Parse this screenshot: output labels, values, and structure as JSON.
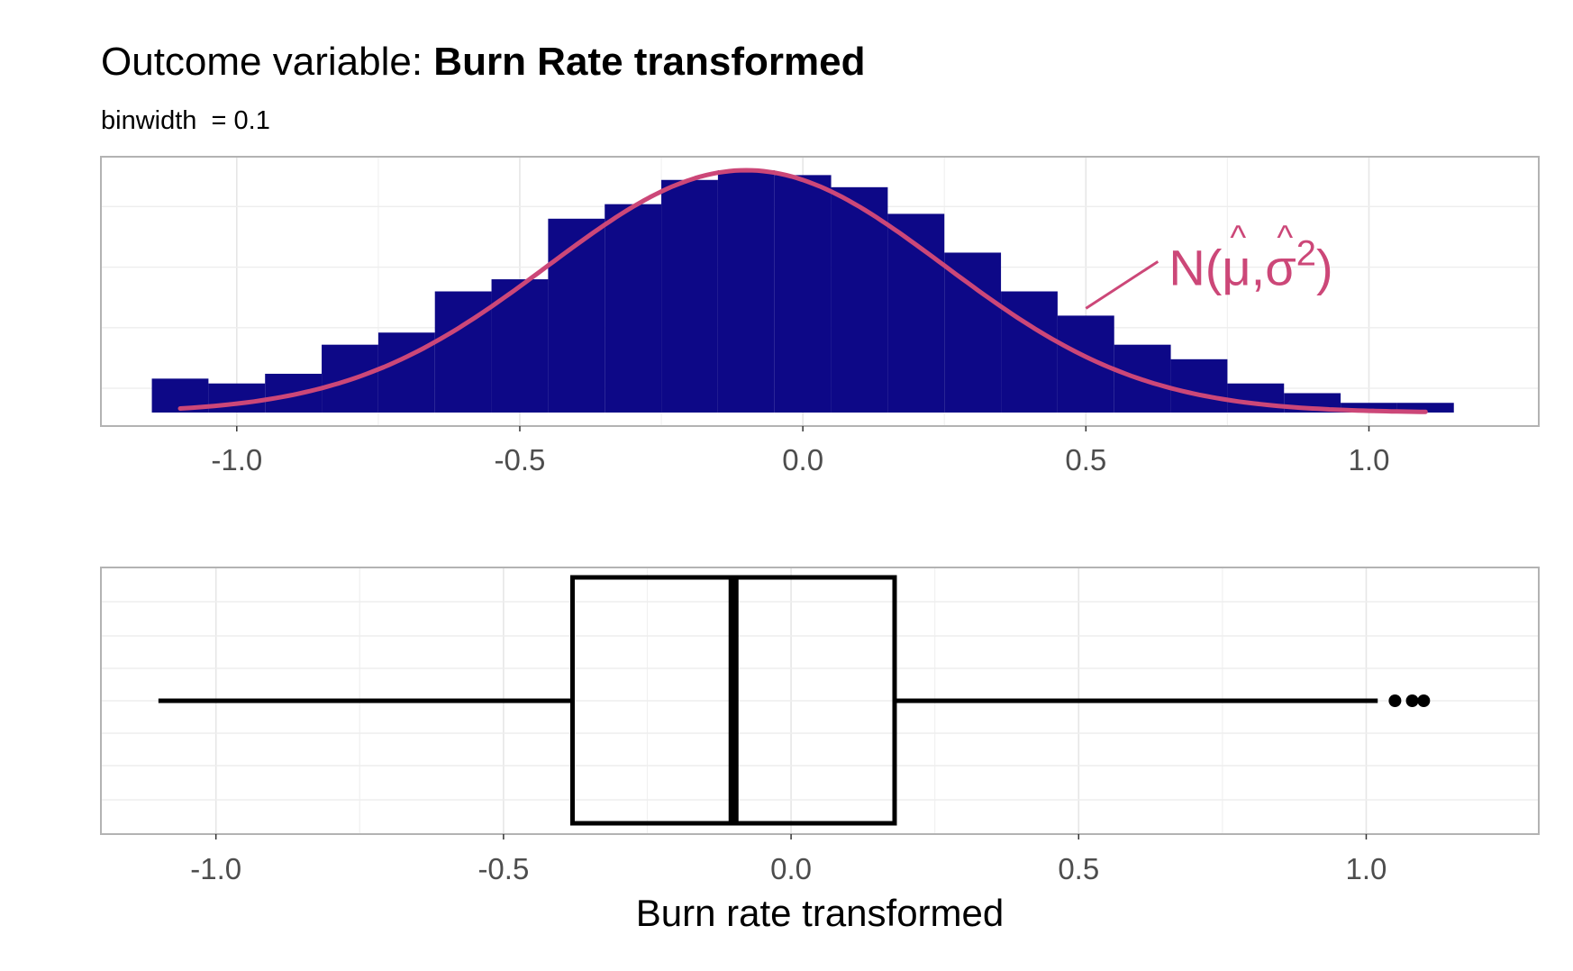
{
  "header": {
    "title_prefix": "Outcome variable:",
    "title_bold": "Burn Rate transformed",
    "subtitle": "binwidth  = 0.1"
  },
  "colors": {
    "bars": "#0d0887",
    "density": "#cc4778",
    "grid": "#e6e6e6",
    "panel_border": "#b3b3b3",
    "box": "#000000"
  },
  "chart_data": [
    {
      "type": "bar",
      "title": "",
      "xlabel": "",
      "ylabel": "",
      "xlim": [
        -1.24,
        1.3
      ],
      "binwidth": 0.1,
      "x_ticks": [
        -1.0,
        -0.5,
        0.0,
        0.5,
        1.0
      ],
      "x_tick_labels": [
        "-1.0",
        "-0.5",
        "0.0",
        "0.5",
        "1.0"
      ],
      "grid": true,
      "bins": [
        {
          "start": -1.15,
          "end": -1.05,
          "height": 0.14
        },
        {
          "start": -1.05,
          "end": -0.95,
          "height": 0.12
        },
        {
          "start": -0.95,
          "end": -0.85,
          "height": 0.16
        },
        {
          "start": -0.85,
          "end": -0.75,
          "height": 0.28
        },
        {
          "start": -0.75,
          "end": -0.65,
          "height": 0.33
        },
        {
          "start": -0.65,
          "end": -0.55,
          "height": 0.5
        },
        {
          "start": -0.55,
          "end": -0.45,
          "height": 0.55
        },
        {
          "start": -0.45,
          "end": -0.35,
          "height": 0.8
        },
        {
          "start": -0.35,
          "end": -0.25,
          "height": 0.86
        },
        {
          "start": -0.25,
          "end": -0.15,
          "height": 0.96
        },
        {
          "start": -0.15,
          "end": -0.05,
          "height": 1.0
        },
        {
          "start": -0.05,
          "end": 0.05,
          "height": 0.98
        },
        {
          "start": 0.05,
          "end": 0.15,
          "height": 0.93
        },
        {
          "start": 0.15,
          "end": 0.25,
          "height": 0.82
        },
        {
          "start": 0.25,
          "end": 0.35,
          "height": 0.66
        },
        {
          "start": 0.35,
          "end": 0.45,
          "height": 0.5
        },
        {
          "start": 0.45,
          "end": 0.55,
          "height": 0.4
        },
        {
          "start": 0.55,
          "end": 0.65,
          "height": 0.28
        },
        {
          "start": 0.65,
          "end": 0.75,
          "height": 0.22
        },
        {
          "start": 0.75,
          "end": 0.85,
          "height": 0.12
        },
        {
          "start": 0.85,
          "end": 0.95,
          "height": 0.08
        },
        {
          "start": 0.95,
          "end": 1.05,
          "height": 0.04
        },
        {
          "start": 1.05,
          "end": 1.15,
          "height": 0.04
        }
      ],
      "density_curve": {
        "type": "normal",
        "mean": -0.1,
        "sd": 0.35,
        "x_range": [
          -1.1,
          1.1
        ],
        "annotation": "N(μ̂,σ̂²)",
        "annotation_parts": {
          "prefix": "N(",
          "mu": "μ",
          "comma": ",",
          "sigma": "σ",
          "hat": "^",
          "exp": "2",
          "suffix": ")"
        },
        "annotation_anchor": {
          "x": 0.5,
          "y": 0.43
        }
      }
    },
    {
      "type": "boxplot",
      "title": "",
      "xlabel": "Burn rate transformed",
      "ylabel": "",
      "xlim": [
        -1.2,
        1.3
      ],
      "x_ticks": [
        -1.0,
        -0.5,
        0.0,
        0.5,
        1.0
      ],
      "x_tick_labels": [
        "-1.0",
        "-0.5",
        "0.0",
        "0.5",
        "1.0"
      ],
      "grid": true,
      "whisker_low": -1.1,
      "q1": -0.38,
      "median": -0.1,
      "q3": 0.18,
      "whisker_high": 1.02,
      "outliers": [
        1.05,
        1.08,
        1.1
      ]
    }
  ]
}
